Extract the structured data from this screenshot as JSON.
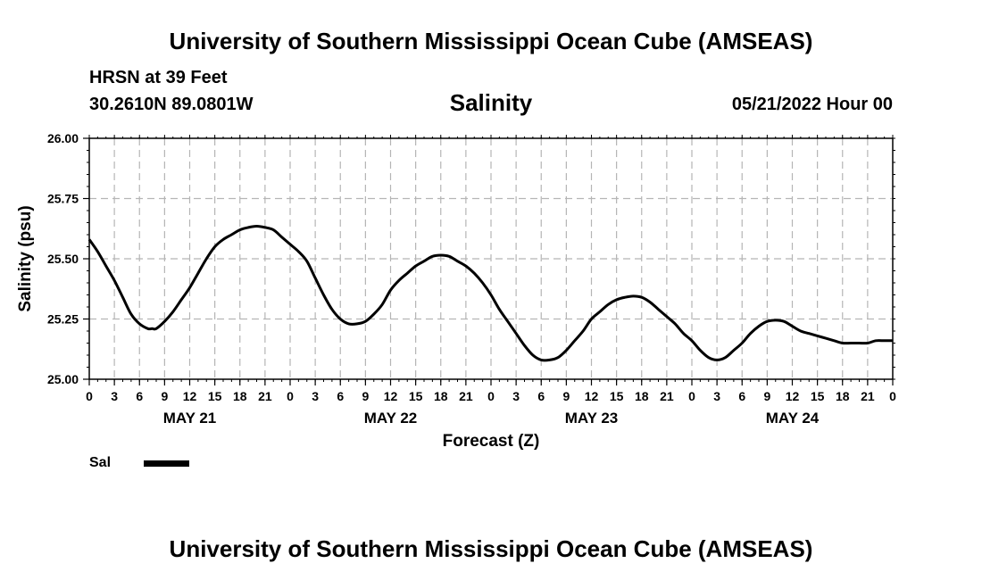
{
  "header": {
    "top_title": "University of Southern Mississippi Ocean Cube (AMSEAS)",
    "station": "HRSN at 39 Feet",
    "coords": "30.2610N  89.0801W",
    "chart_title": "Salinity",
    "run_time": "05/21/2022 Hour 00",
    "bottom_title": "University of Southern Mississippi Ocean Cube (AMSEAS)"
  },
  "legend": {
    "label": "Sal",
    "color": "#000000"
  },
  "chart_data": {
    "type": "line",
    "title": "Salinity",
    "xlabel": "Forecast (Z)",
    "ylabel": "Salinity (psu)",
    "ylim": [
      25.0,
      26.0
    ],
    "yticks": [
      "25.00",
      "25.25",
      "25.50",
      "25.75",
      "26.00"
    ],
    "xlim": [
      0,
      96
    ],
    "xtick_labels": [
      "0",
      "3",
      "6",
      "9",
      "12",
      "15",
      "18",
      "21",
      "0",
      "3",
      "6",
      "9",
      "12",
      "15",
      "18",
      "21",
      "0",
      "3",
      "6",
      "9",
      "12",
      "15",
      "18",
      "21",
      "0",
      "3",
      "6",
      "9",
      "12",
      "15",
      "18",
      "21",
      "0"
    ],
    "day_labels": [
      {
        "hour": 12,
        "label": "MAY 21"
      },
      {
        "hour": 36,
        "label": "MAY 22"
      },
      {
        "hour": 60,
        "label": "MAY 23"
      },
      {
        "hour": 84,
        "label": "MAY 24"
      }
    ],
    "grid": true,
    "series": [
      {
        "name": "Sal",
        "color": "#000000",
        "x": [
          0,
          1,
          2,
          3,
          4,
          5,
          6,
          7,
          7.5,
          8,
          9,
          10,
          11,
          12,
          13,
          14,
          15,
          16,
          17,
          18,
          19,
          20,
          21,
          22,
          23,
          24,
          25,
          26,
          27,
          28,
          29,
          30,
          31,
          32,
          33,
          34,
          35,
          36,
          37,
          38,
          39,
          40,
          41,
          42,
          43,
          44,
          45,
          46,
          47,
          48,
          49,
          50,
          51,
          52,
          53,
          54,
          55,
          56,
          57,
          58,
          59,
          60,
          61,
          62,
          63,
          64,
          65,
          66,
          67,
          68,
          69,
          70,
          71,
          72,
          73,
          74,
          75,
          76,
          77,
          78,
          79,
          80,
          81,
          82,
          83,
          84,
          85,
          86,
          87,
          88,
          89,
          90,
          91,
          92,
          93,
          94,
          95,
          96
        ],
        "values": [
          25.58,
          25.53,
          25.47,
          25.41,
          25.34,
          25.27,
          25.23,
          25.21,
          25.21,
          25.21,
          25.24,
          25.28,
          25.33,
          25.38,
          25.44,
          25.5,
          25.55,
          25.58,
          25.6,
          25.62,
          25.63,
          25.635,
          25.63,
          25.62,
          25.59,
          25.56,
          25.53,
          25.49,
          25.42,
          25.35,
          25.29,
          25.25,
          25.23,
          25.23,
          25.24,
          25.27,
          25.31,
          25.37,
          25.41,
          25.44,
          25.47,
          25.49,
          25.51,
          25.515,
          25.51,
          25.49,
          25.47,
          25.44,
          25.4,
          25.35,
          25.29,
          25.24,
          25.19,
          25.14,
          25.1,
          25.08,
          25.08,
          25.09,
          25.12,
          25.16,
          25.2,
          25.25,
          25.28,
          25.31,
          25.33,
          25.34,
          25.345,
          25.34,
          25.32,
          25.29,
          25.26,
          25.23,
          25.19,
          25.16,
          25.12,
          25.09,
          25.08,
          25.09,
          25.12,
          25.15,
          25.19,
          25.22,
          25.24,
          25.245,
          25.24,
          25.22,
          25.2,
          25.19,
          25.18,
          25.17,
          25.16,
          25.15,
          25.15,
          25.15,
          25.15,
          25.16,
          25.16,
          25.16
        ]
      }
    ]
  }
}
